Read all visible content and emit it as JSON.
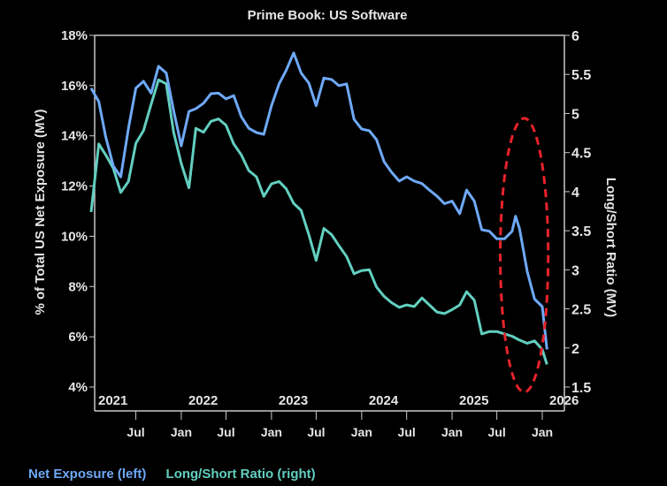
{
  "chart_data": {
    "type": "line",
    "title": "Prime Book: US Software",
    "ylabel_left": "% of Total US Net Exposure (MV)",
    "ylabel_right": "Long/Short Ratio (MV)",
    "ylim_left": [
      4,
      18
    ],
    "ylim_right": [
      1.5,
      6
    ],
    "xlim": [
      "2021-01-01",
      "2026-02-10"
    ],
    "yticks_left": [
      "18%",
      "16%",
      "14%",
      "12%",
      "10%",
      "8%",
      "6%",
      "4%"
    ],
    "yticks_left_values": [
      18,
      16,
      14,
      12,
      10,
      8,
      6,
      4
    ],
    "yticks_right": [
      "6",
      "5.5",
      "5",
      "4.5",
      "4",
      "3.5",
      "3",
      "2.5",
      "2",
      "1.5"
    ],
    "yticks_right_values": [
      6,
      5.5,
      5,
      4.5,
      4,
      3.5,
      3,
      2.5,
      2,
      1.5
    ],
    "year_labels": [
      {
        "label": "2021",
        "date": "2021-01-01"
      },
      {
        "label": "2022",
        "date": "2022-01-01"
      },
      {
        "label": "2023",
        "date": "2023-01-01"
      },
      {
        "label": "2024",
        "date": "2024-01-01"
      },
      {
        "label": "2025",
        "date": "2025-01-01"
      },
      {
        "label": "2026",
        "date": "2026-01-01"
      }
    ],
    "month_ticks": [
      {
        "label": "Jul",
        "date": "2021-07-01"
      },
      {
        "label": "Jan",
        "date": "2022-01-01"
      },
      {
        "label": "Jul",
        "date": "2022-07-01"
      },
      {
        "label": "Jan",
        "date": "2023-01-01"
      },
      {
        "label": "Jul",
        "date": "2023-07-01"
      },
      {
        "label": "Jan",
        "date": "2024-01-01"
      },
      {
        "label": "Jul",
        "date": "2024-07-01"
      },
      {
        "label": "Jan",
        "date": "2025-01-01"
      },
      {
        "label": "Jul",
        "date": "2025-07-01"
      },
      {
        "label": "Jan",
        "date": "2026-01-01"
      }
    ],
    "grid": false,
    "legend_placement": "bottom-left",
    "series": [
      {
        "name": "Net Exposure (left)",
        "axis": "left",
        "color": "#6fa9f7",
        "x": [
          "2021-01",
          "2021-02",
          "2021-03",
          "2021-04",
          "2021-05",
          "2021-06",
          "2021-07",
          "2021-08",
          "2021-09",
          "2021-10",
          "2021-11",
          "2021-12",
          "2022-01",
          "2022-02",
          "2022-03",
          "2022-04",
          "2022-05",
          "2022-06",
          "2022-07",
          "2022-08",
          "2022-09",
          "2022-10",
          "2022-11",
          "2022-12",
          "2023-01",
          "2023-02",
          "2023-03",
          "2023-04",
          "2023-05",
          "2023-06",
          "2023-07",
          "2023-08",
          "2023-09",
          "2023-10",
          "2023-11",
          "2023-12",
          "2024-01",
          "2024-02",
          "2024-03",
          "2024-04",
          "2024-05",
          "2024-06",
          "2024-07",
          "2024-08",
          "2024-09",
          "2024-10",
          "2024-11",
          "2024-12",
          "2025-01",
          "2025-02",
          "2025-03",
          "2025-04",
          "2025-05",
          "2025-06",
          "2025-07",
          "2025-08",
          "2025-09",
          "2025-09-15",
          "2025-10",
          "2025-11",
          "2025-12",
          "2026-01",
          "2026-01-20"
        ],
        "values": [
          15.9,
          15.36,
          13.96,
          12.8,
          12.37,
          14.3,
          15.9,
          16.17,
          15.7,
          16.77,
          16.5,
          15.0,
          13.6,
          14.97,
          15.08,
          15.3,
          15.68,
          15.7,
          15.47,
          15.6,
          14.76,
          14.3,
          14.13,
          14.06,
          15.2,
          16.07,
          16.6,
          17.3,
          16.5,
          16.1,
          15.2,
          16.3,
          16.24,
          16.0,
          16.07,
          14.66,
          14.27,
          14.2,
          13.85,
          12.97,
          12.55,
          12.2,
          12.37,
          12.2,
          12.1,
          11.84,
          11.6,
          11.3,
          11.4,
          10.9,
          11.84,
          11.4,
          10.26,
          10.2,
          9.9,
          9.9,
          10.2,
          10.8,
          10.3,
          8.6,
          7.5,
          7.2,
          5.5
        ]
      },
      {
        "name": "Long/Short Ratio (right)",
        "axis": "right",
        "color": "#62cfc0",
        "x": [
          "2021-01",
          "2021-02",
          "2021-03",
          "2021-04",
          "2021-05",
          "2021-06",
          "2021-07",
          "2021-08",
          "2021-09",
          "2021-10",
          "2021-11",
          "2021-12",
          "2022-01",
          "2022-02",
          "2022-03",
          "2022-04",
          "2022-05",
          "2022-06",
          "2022-07",
          "2022-08",
          "2022-09",
          "2022-10",
          "2022-11",
          "2022-12",
          "2023-01",
          "2023-02",
          "2023-03",
          "2023-04",
          "2023-05",
          "2023-06",
          "2023-07",
          "2023-08",
          "2023-09",
          "2023-10",
          "2023-11",
          "2023-12",
          "2024-01",
          "2024-02",
          "2024-03",
          "2024-04",
          "2024-05",
          "2024-06",
          "2024-07",
          "2024-08",
          "2024-09",
          "2024-10",
          "2024-11",
          "2024-12",
          "2025-01",
          "2025-02",
          "2025-03",
          "2025-04",
          "2025-05",
          "2025-06",
          "2025-07",
          "2025-08",
          "2025-09",
          "2025-10",
          "2025-11",
          "2025-12",
          "2026-01",
          "2026-01-20"
        ],
        "values": [
          3.74,
          4.61,
          4.47,
          4.3,
          3.99,
          4.13,
          4.62,
          4.78,
          5.12,
          5.43,
          5.38,
          4.76,
          4.36,
          4.05,
          4.81,
          4.76,
          4.9,
          4.93,
          4.85,
          4.61,
          4.47,
          4.27,
          4.19,
          3.94,
          4.1,
          4.13,
          4.04,
          3.85,
          3.76,
          3.45,
          3.12,
          3.53,
          3.45,
          3.31,
          3.17,
          2.95,
          2.99,
          3.0,
          2.78,
          2.66,
          2.58,
          2.52,
          2.55,
          2.53,
          2.64,
          2.55,
          2.46,
          2.44,
          2.49,
          2.55,
          2.72,
          2.61,
          2.18,
          2.21,
          2.21,
          2.18,
          2.15,
          2.1,
          2.06,
          2.09,
          1.98,
          1.79
        ]
      }
    ],
    "annotations": [
      {
        "type": "dashed-ellipse",
        "color": "#e8232a",
        "date_range": [
          "2025-07-15",
          "2026-01-25"
        ],
        "y_range_left": [
          3.8,
          14.7
        ]
      }
    ]
  },
  "legend": {
    "net_exposure": "Net Exposure (left)",
    "long_short": "Long/Short Ratio (right)"
  },
  "colors": {
    "axis": "#c8c8c8",
    "text": "#e6e6e6",
    "net": "#6fa9f7",
    "ratio": "#62cfc0",
    "annotation": "#e8232a"
  }
}
